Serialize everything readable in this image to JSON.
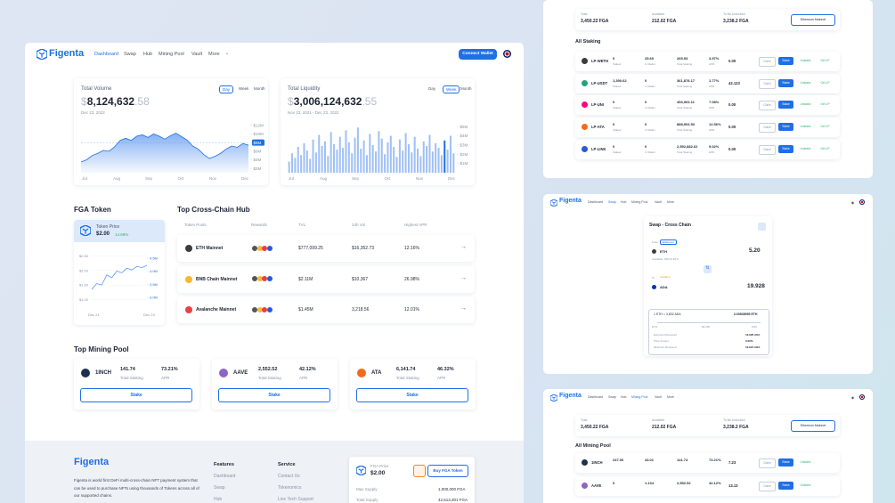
{
  "nav": {
    "brand": "Figenta",
    "links": [
      "Dashboard",
      "Swap",
      "Hub",
      "Mining Pool",
      "Vault",
      "More"
    ],
    "button": "Connect Wallet"
  },
  "volume": {
    "title": "Total Volume",
    "currency": "$",
    "value": "8,124,632",
    "decimals": ".58",
    "date": "Dec 23, 2022",
    "ranges": [
      "Day",
      "Week",
      "Month"
    ],
    "ylim": [
      1,
      13
    ],
    "yticks": [
      {
        "value": 12,
        "label": "$12M"
      },
      {
        "value": 10,
        "label": "$10M"
      },
      {
        "value": 8,
        "label": "$8M"
      },
      {
        "value": 6,
        "label": "$6M"
      },
      {
        "value": 4,
        "label": "$4M"
      },
      {
        "value": 2,
        "label": "$2M"
      }
    ],
    "xlabels": [
      "Jul",
      "Aug",
      "Sep",
      "Oct",
      "Nov",
      "Dec"
    ],
    "values": [
      3.5,
      4,
      5,
      5.5,
      6.2,
      6,
      7,
      8.5,
      9,
      8.5,
      9.5,
      9.8,
      9.2,
      10,
      9.5,
      8.8,
      9.6,
      10.2,
      9.4,
      8.6,
      7.2,
      6.5,
      5.2,
      4.3,
      4.8,
      5.5,
      6.5,
      7.2,
      6.9,
      7.8,
      7.4
    ]
  },
  "liquidity": {
    "title": "Total Liquidity",
    "currency": "$",
    "value": "3,006,124,632",
    "decimals": ".55",
    "date": "Nov 23, 2021 - Dec 23, 2022",
    "ranges": [
      "Day",
      "Week",
      "Month"
    ],
    "ylim": [
      0,
      5.6
    ],
    "yticks": [
      {
        "value": 5,
        "label": "$5M"
      },
      {
        "value": 4,
        "label": "$4M"
      },
      {
        "value": 3,
        "label": "$3M"
      },
      {
        "value": 2,
        "label": "$2M"
      },
      {
        "value": 1,
        "label": "$1M"
      }
    ],
    "xlabels": [
      "Jul",
      "Aug",
      "Sep",
      "Oct",
      "Nov",
      "Dec"
    ],
    "values": [
      1.2,
      2.1,
      1.6,
      2.8,
      1.9,
      3.2,
      2.4,
      1.5,
      3.6,
      2.2,
      4.1,
      2.9,
      3.4,
      1.8,
      4.4,
      3.1,
      2.5,
      3.9,
      2.7,
      4.6,
      3.3,
      2.1,
      3.8,
      4.9,
      2.6,
      3.5,
      1.9,
      4.2,
      3.0,
      2.3,
      4.5,
      3.7,
      2.0,
      3.3,
      4.0,
      2.8,
      1.7,
      3.6,
      2.4,
      4.3,
      3.1,
      2.2,
      3.9,
      2.6,
      1.8,
      3.4,
      2.9,
      4.1,
      2.3,
      3.2,
      2.7,
      1.9,
      3.5,
      2.5,
      4.0,
      2.1
    ]
  },
  "fga": {
    "title": "FGA Token",
    "label": "Token Price",
    "price": "$2.00",
    "change": "14.68%",
    "ylim": [
      0.8,
      2.7
    ],
    "yticks": [
      {
        "value": 2.5,
        "label": "$2.50"
      },
      {
        "value": 2.0,
        "label": "$2.00"
      },
      {
        "value": 1.5,
        "label": "$1.50"
      },
      {
        "value": 1.0,
        "label": "$1.00"
      }
    ],
    "y2lim": [
      2.7,
      4.8
    ],
    "y2ticks": [
      {
        "value": 4.5,
        "label": "4.5M"
      },
      {
        "value": 4.0,
        "label": "4.0M"
      },
      {
        "value": 3.5,
        "label": "3.5M"
      },
      {
        "value": 3.0,
        "label": "3.0M"
      }
    ],
    "dates": [
      "Dec 21",
      "Dec 23"
    ],
    "values": [
      1.35,
      1.55,
      1.5,
      1.85,
      1.75,
      1.98,
      1.92,
      2.08,
      2.02,
      2.14,
      2.1,
      2.18
    ]
  },
  "hub": {
    "title": "Top Cross-Chain Hub",
    "columns": [
      "Token Pools",
      "Rewards",
      "TVL",
      "24h Vol",
      "Highest APR"
    ],
    "rows": [
      {
        "name": "ETH Mainnet",
        "tvl": "$777,099.25",
        "vol": "$16,352.73",
        "apr": "12.16%",
        "color": "#3c3c3d"
      },
      {
        "name": "BNB Chain Mainnet",
        "tvl": "$2.11M",
        "vol": "$10,367",
        "apr": "26.98%",
        "color": "#f3ba2f"
      },
      {
        "name": "Avalanche Mainnet",
        "tvl": "$1.45M",
        "vol": "3,218.56",
        "apr": "12.01%",
        "color": "#e84142"
      }
    ]
  },
  "mining": {
    "title": "Top Mining Pool",
    "staking_label": "Total Staking",
    "apr_label": "APR",
    "button": "Stake",
    "pools": [
      {
        "name": "1INCH",
        "staking": "141.74",
        "apr": "73.21%",
        "color": "#1b314f"
      },
      {
        "name": "AAVE",
        "staking": "2,552.52",
        "apr": "42.12%",
        "color": "#8d65c5"
      },
      {
        "name": "ATA",
        "staking": "6,141.74",
        "apr": "46.32%",
        "color": "#f26b1d"
      }
    ]
  },
  "footer": {
    "brand": "Figenta",
    "description": "Figenta is world first DeFi multi-cross-chain NFT payment system that can be used to purchase NFTs using thousands of Tokens across all of our supported chains.",
    "features_title": "Features",
    "features": [
      "Dashboard",
      "Swap",
      "Hub"
    ],
    "service_title": "Service",
    "service": [
      "Contact Us",
      "Tokenomics",
      "Live Tech Support"
    ],
    "price_label": "FGA Price",
    "price": "$2.00",
    "buy": "Buy FGA Token",
    "stats": [
      [
        "Max Supply",
        "1,000,000 FGA"
      ],
      [
        "Total Supply",
        "42,513,301 FGA"
      ]
    ]
  },
  "staking_panel": {
    "stats": [
      [
        "Total",
        "3,450.22 FGA"
      ],
      [
        "Available",
        "212.02 FGA"
      ],
      [
        "To Be Unlocked",
        "3,238.2 FGA"
      ]
    ],
    "network": "Ethereum Mainnet",
    "title": "All Staking",
    "labels": [
      "Staked",
      "In Wallet",
      "Total Staking",
      "APR"
    ],
    "buttons": [
      "Claim",
      "Stake",
      "Unstake",
      "Get LP"
    ],
    "rows": [
      {
        "name": "LP-WETH",
        "cols": [
          "0",
          "25.69",
          "265.93",
          "3.97%"
        ],
        "reward": "0.00",
        "color": "#3c3c3d"
      },
      {
        "name": "LP-USDT",
        "cols": [
          "1,390.62",
          "0",
          "361,878.17",
          "1.77%"
        ],
        "reward": "42.123",
        "color": "#26a17b"
      },
      {
        "name": "LP-UNI",
        "cols": [
          "0",
          "0",
          "453,903.11",
          "7.08%"
        ],
        "reward": "0.00",
        "color": "#ff007a"
      },
      {
        "name": "LP-ATA",
        "cols": [
          "0",
          "0",
          "888,903.53",
          "12.56%"
        ],
        "reward": "0.00",
        "color": "#f26b1d"
      },
      {
        "name": "LP-LINK",
        "cols": [
          "0",
          "0",
          "2,592,882.62",
          "9.02%"
        ],
        "reward": "0.00",
        "color": "#2a5ada"
      }
    ]
  },
  "swap_panel": {
    "title": "Swap - Cross Chain",
    "from_label": "From",
    "from_chain": "Ethereum",
    "from_token": "ETH",
    "from_amount": "5.20",
    "from_note": "Available: 185.04 ETH",
    "to_label": "To",
    "to_chain": "Cardano",
    "to_token": "ADA",
    "to_amount": "19.928",
    "rate": "1 ETH = 3,832 ADA",
    "fee": "0.00838959 ETH",
    "route": [
      "ETH",
      "$6,000",
      "ADA"
    ],
    "details": [
      [
        "Expected Received",
        "19.928 ADA"
      ],
      [
        "Price Impact",
        "0.00%"
      ],
      [
        "Minimum Received",
        "19.924 ADA"
      ]
    ]
  },
  "mining_panel": {
    "title": "All Mining Pool",
    "buttons": [
      "Claim",
      "Stake",
      "Unstake"
    ],
    "rows": [
      {
        "name": "1INCH",
        "cols": [
          "247.00",
          "43.01",
          "141.74",
          "73.21%"
        ],
        "reward": "7.23",
        "color": "#1b314f"
      },
      {
        "name": "AAVE",
        "cols": [
          "0",
          "1.134",
          "2,552.52",
          "42.12%"
        ],
        "reward": "13.13",
        "color": "#8d65c5"
      }
    ]
  }
}
